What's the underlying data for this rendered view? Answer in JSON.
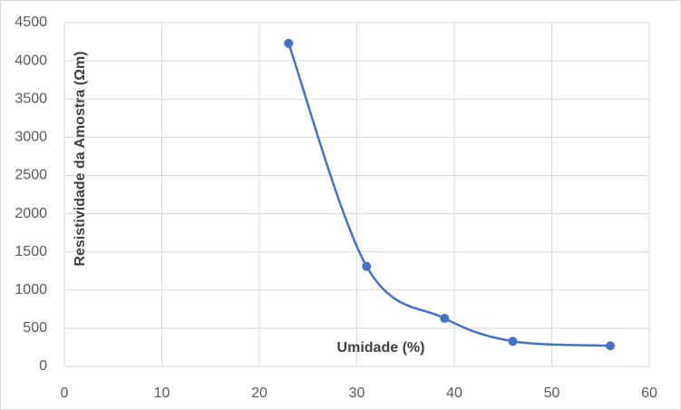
{
  "chart_data": {
    "type": "line",
    "smooth": true,
    "markers": true,
    "x_label": "Umidade (%)",
    "y_label": "Resistividade da Amostra (Ωm)",
    "x": [
      23,
      31,
      39,
      46,
      56
    ],
    "series": [
      {
        "color": "#4472c4",
        "values": [
          4230,
          1310,
          630,
          330,
          270
        ]
      }
    ],
    "xlim": [
      0,
      60
    ],
    "xticks": [
      0,
      10,
      20,
      30,
      40,
      50,
      60
    ],
    "ylim": [
      0,
      4500
    ],
    "yticks": [
      0,
      500,
      1000,
      1500,
      2000,
      2500,
      3000,
      3500,
      4000,
      4500
    ],
    "grid": true
  }
}
